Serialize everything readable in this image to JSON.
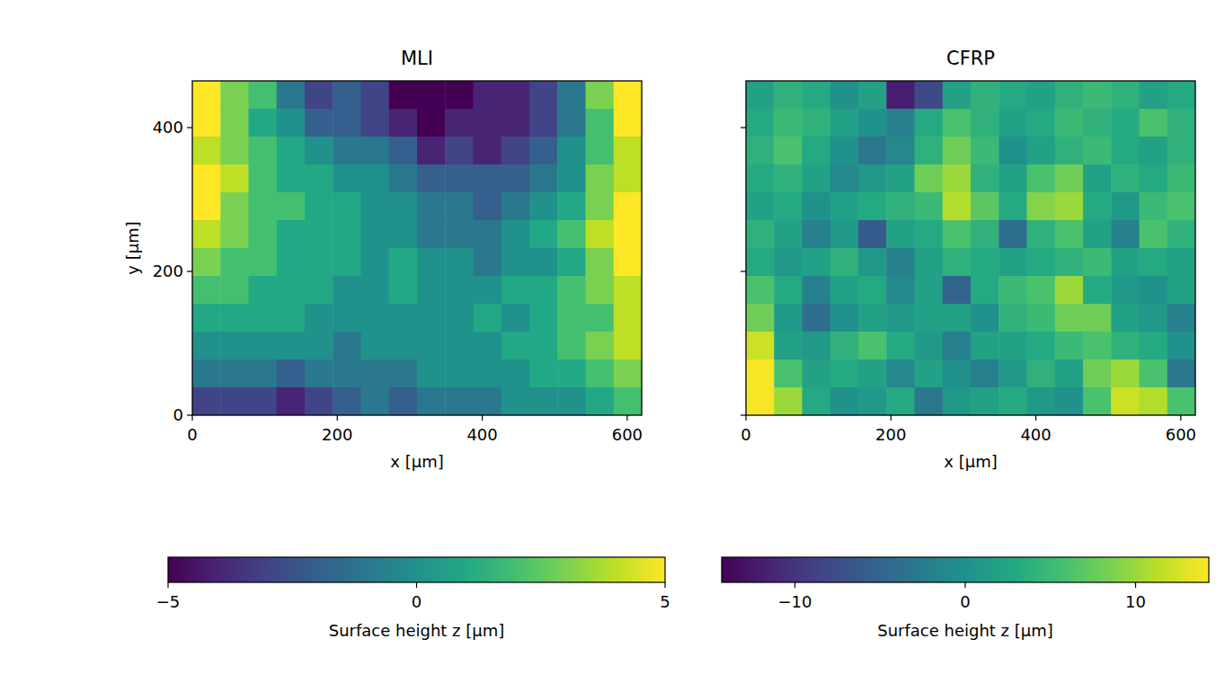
{
  "chart_data": [
    {
      "type": "heatmap",
      "title": "MLI",
      "x_label": "x [µm]",
      "y_label": "y [µm]",
      "xlim": [
        0,
        620
      ],
      "ylim": [
        0,
        465
      ],
      "xticks": [
        0,
        200,
        400,
        600
      ],
      "yticks": [
        0,
        200,
        400
      ],
      "tick_labels": true,
      "color": "viridis",
      "cells": [
        [
          5,
          3,
          2,
          -1,
          -3,
          -2,
          -3,
          -5,
          -5,
          -5,
          -4,
          -4,
          -3,
          -1,
          3,
          5
        ],
        [
          5,
          3,
          1,
          0,
          -2,
          -2,
          -3,
          -4,
          -5,
          -4,
          -4,
          -4,
          -3,
          -1,
          2,
          5
        ],
        [
          4,
          3,
          2,
          1,
          0,
          -1,
          -1,
          -2,
          -4,
          -3,
          -4,
          -3,
          -2,
          0,
          2,
          4
        ],
        [
          5,
          4,
          2,
          1,
          1,
          0,
          0,
          -1,
          -2,
          -2,
          -2,
          -2,
          -1,
          0,
          3,
          4
        ],
        [
          5,
          3,
          2,
          2,
          1,
          1,
          0,
          0,
          -1,
          -1,
          -2,
          -1,
          0,
          1,
          3,
          5
        ],
        [
          4,
          3,
          2,
          1,
          1,
          1,
          0,
          0,
          -1,
          -1,
          -1,
          0,
          1,
          2,
          4,
          5
        ],
        [
          3,
          2,
          2,
          1,
          1,
          1,
          0,
          1,
          0,
          0,
          -1,
          0,
          0,
          1,
          3,
          5
        ],
        [
          2,
          2,
          1,
          1,
          1,
          0,
          0,
          1,
          0,
          0,
          0,
          1,
          1,
          2,
          3,
          4
        ],
        [
          1,
          1,
          1,
          1,
          0,
          0,
          0,
          0,
          0,
          0,
          1,
          0,
          1,
          2,
          2,
          4
        ],
        [
          0,
          0,
          0,
          0,
          0,
          -1,
          0,
          0,
          0,
          0,
          0,
          1,
          1,
          2,
          3,
          4
        ],
        [
          -1,
          -1,
          -1,
          -2,
          -1,
          -1,
          -1,
          -1,
          0,
          0,
          0,
          0,
          1,
          1,
          2,
          3
        ],
        [
          -3,
          -3,
          -3,
          -4,
          -3,
          -2,
          -1,
          -2,
          -1,
          -1,
          -1,
          0,
          0,
          0,
          1,
          2
        ]
      ],
      "colorbar": {
        "range": [
          -5,
          5
        ],
        "ticks": [
          {
            "value": -5,
            "label": "−5"
          },
          0,
          5
        ],
        "label": "Surface height z [µm]"
      }
    },
    {
      "type": "heatmap",
      "title": "CFRP",
      "x_label": "x [µm]",
      "xlim": [
        0,
        620
      ],
      "ylim": [
        0,
        465
      ],
      "xticks": [
        0,
        200,
        400,
        600
      ],
      "yticks": [
        0,
        200,
        400
      ],
      "tick_labels": "x",
      "color": "viridis",
      "cells": [
        [
          2,
          4,
          3,
          0,
          2,
          -12,
          -8,
          2,
          4,
          3,
          2,
          4,
          5,
          4,
          2,
          3
        ],
        [
          3,
          5,
          4,
          2,
          0,
          -2,
          3,
          6,
          4,
          2,
          3,
          5,
          4,
          3,
          6,
          4
        ],
        [
          4,
          6,
          3,
          0,
          -3,
          -1,
          4,
          8,
          5,
          0,
          2,
          4,
          5,
          3,
          2,
          4
        ],
        [
          3,
          4,
          2,
          -1,
          1,
          2,
          8,
          10,
          4,
          2,
          6,
          8,
          2,
          4,
          3,
          5
        ],
        [
          2,
          3,
          0,
          2,
          3,
          4,
          5,
          11,
          7,
          3,
          9,
          10,
          3,
          1,
          5,
          6
        ],
        [
          4,
          2,
          -2,
          1,
          -6,
          2,
          3,
          6,
          4,
          -4,
          4,
          6,
          2,
          -2,
          6,
          4
        ],
        [
          3,
          1,
          2,
          4,
          1,
          -2,
          2,
          4,
          3,
          2,
          3,
          4,
          5,
          2,
          3,
          2
        ],
        [
          6,
          3,
          -2,
          2,
          3,
          -1,
          2,
          -5,
          3,
          5,
          6,
          10,
          3,
          1,
          0,
          2
        ],
        [
          8,
          1,
          -4,
          0,
          2,
          1,
          2,
          2,
          0,
          4,
          5,
          8,
          8,
          2,
          1,
          -2
        ],
        [
          12,
          2,
          1,
          4,
          6,
          3,
          1,
          -2,
          2,
          2,
          3,
          5,
          6,
          4,
          3,
          0
        ],
        [
          14,
          6,
          2,
          3,
          2,
          -1,
          2,
          0,
          -2,
          1,
          4,
          2,
          8,
          10,
          6,
          -3
        ],
        [
          14,
          10,
          3,
          0,
          1,
          3,
          -3,
          1,
          2,
          3,
          1,
          0,
          6,
          12,
          11,
          6
        ]
      ],
      "colorbar": {
        "range": [
          -14.3,
          14.3
        ],
        "ticks": [
          {
            "value": -10,
            "label": "−10"
          },
          0,
          10
        ],
        "label": "Surface height z [µm]"
      }
    }
  ]
}
